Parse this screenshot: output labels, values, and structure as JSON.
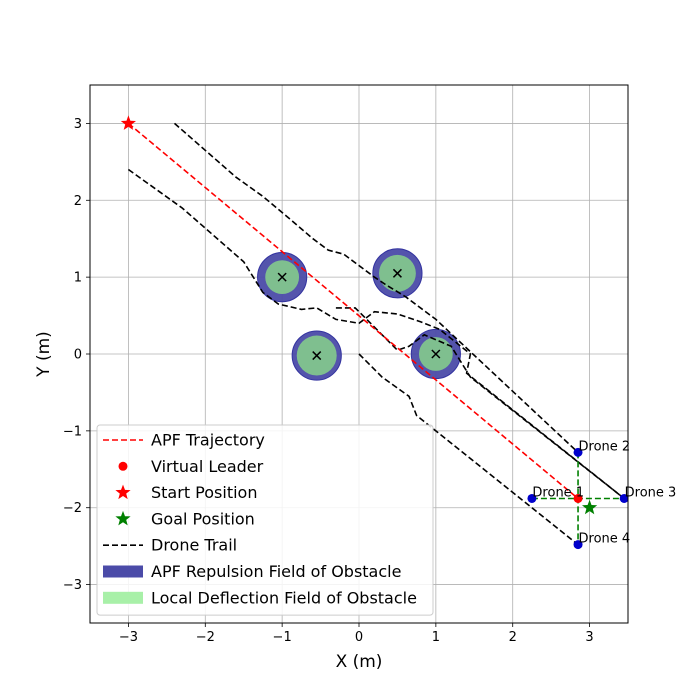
{
  "chart_data": {
    "type": "line",
    "title": "",
    "xlabel": "X (m)",
    "ylabel": "Y (m)",
    "xlim": [
      -3.5,
      3.5
    ],
    "ylim": [
      -3.5,
      3.5
    ],
    "xticks": [
      -3,
      -2,
      -1,
      0,
      1,
      2,
      3
    ],
    "yticks": [
      -3,
      -2,
      -1,
      0,
      1,
      2,
      3
    ],
    "xtick_labels": [
      "−3",
      "−2",
      "−1",
      "0",
      "1",
      "2",
      "3"
    ],
    "ytick_labels": [
      "−3",
      "−2",
      "−1",
      "0",
      "1",
      "2",
      "3"
    ],
    "grid": true,
    "legend_position": "lower-left",
    "colors": {
      "trajectory": "#ff0000",
      "leader": "#ff0000",
      "start": "#ff0000",
      "goal": "#008000",
      "trail": "#000000",
      "repulsion": "#4b4ba8",
      "deflection": "#7fbf8f",
      "drone": "#0000cc",
      "formation": "#008000"
    },
    "obstacles": [
      {
        "x": -1.0,
        "y": 1.0,
        "repulsion_radius": 0.32,
        "deflection_radius": 0.22
      },
      {
        "x": 0.5,
        "y": 1.05,
        "repulsion_radius": 0.32,
        "deflection_radius": 0.24
      },
      {
        "x": -0.55,
        "y": -0.02,
        "repulsion_radius": 0.32,
        "deflection_radius": 0.26
      },
      {
        "x": 1.0,
        "y": 0.0,
        "repulsion_radius": 0.32,
        "deflection_radius": 0.22
      }
    ],
    "apf_trajectory": {
      "x": [
        -3.0,
        2.85
      ],
      "y": [
        3.0,
        -1.88
      ]
    },
    "start": {
      "x": -3.0,
      "y": 3.0
    },
    "goal": {
      "x": 3.0,
      "y": -2.0
    },
    "virtual_leader": {
      "x": 2.85,
      "y": -1.88
    },
    "drones": [
      {
        "name": "Drone 1",
        "x": 2.25,
        "y": -1.88
      },
      {
        "name": "Drone 2",
        "x": 2.85,
        "y": -1.28
      },
      {
        "name": "Drone 3",
        "x": 3.45,
        "y": -1.88
      },
      {
        "name": "Drone 4",
        "x": 2.85,
        "y": -2.48
      }
    ],
    "drone_trails": [
      {
        "x": [
          -2.4,
          -1.6,
          -1.25,
          -0.95,
          -0.6,
          -0.4,
          -0.2,
          0.2,
          0.35,
          0.6,
          1.0,
          2.85
        ],
        "y": [
          3.0,
          2.3,
          2.05,
          1.8,
          1.5,
          1.35,
          1.3,
          1.0,
          0.9,
          0.75,
          0.45,
          -1.28
        ]
      },
      {
        "x": [
          -3.0,
          -2.3,
          -1.5,
          -1.25,
          -1.05,
          -0.75,
          -0.55,
          -0.3,
          0.0,
          0.2,
          0.5,
          0.8,
          1.05,
          1.45,
          1.4,
          3.45
        ],
        "y": [
          2.4,
          1.9,
          1.2,
          0.8,
          0.65,
          0.58,
          0.6,
          0.45,
          0.4,
          0.55,
          0.52,
          0.42,
          0.32,
          0.0,
          -0.25,
          -1.88
        ]
      },
      {
        "x": [
          -0.3,
          -0.05,
          0.25,
          0.5,
          0.65,
          0.85,
          1.2,
          1.45,
          3.45
        ],
        "y": [
          0.6,
          0.6,
          0.3,
          0.05,
          0.1,
          0.25,
          0.1,
          -0.3,
          -1.88
        ]
      },
      {
        "x": [
          0.0,
          0.3,
          0.65,
          0.75,
          2.85
        ],
        "y": [
          0.0,
          -0.3,
          -0.55,
          -0.8,
          -2.48
        ]
      }
    ],
    "formation_links": [
      {
        "from": "Drone 2",
        "to": "Drone 4"
      },
      {
        "from": "Drone 1",
        "to": "Drone 3"
      }
    ],
    "legend": [
      {
        "label": "APF Trajectory",
        "kind": "dashed",
        "color": "#ff0000"
      },
      {
        "label": "Virtual Leader",
        "kind": "dot",
        "color": "#ff0000"
      },
      {
        "label": "Start Position",
        "kind": "star",
        "color": "#ff0000"
      },
      {
        "label": "Goal Position",
        "kind": "star",
        "color": "#008000"
      },
      {
        "label": "Drone Trail",
        "kind": "dashed",
        "color": "#000000"
      },
      {
        "label": "APF Repulsion Field of Obstacle",
        "kind": "patch",
        "color": "#4b4ba8"
      },
      {
        "label": "Local Deflection Field of Obstacle",
        "kind": "patch",
        "color": "#a8f0a8"
      }
    ]
  }
}
